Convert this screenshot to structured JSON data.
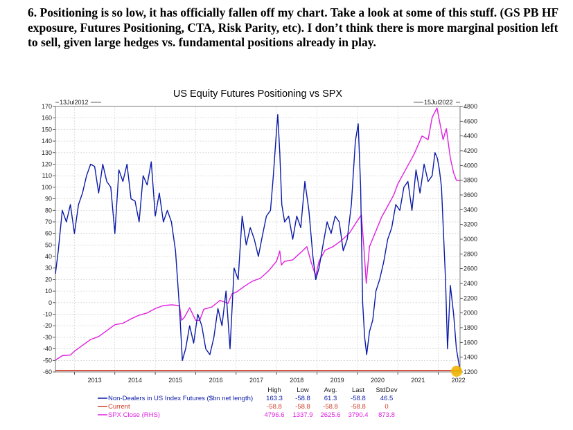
{
  "heading": "6. Positioning is so low, it has officially fallen off my chart. Take a look at some of this stuff. (GS PB HF exposure, Futures Positioning, CTA, Risk Parity, etc). I don’t think there is more marginal position left to sell, given large hedges vs. fundamental positions already in play.",
  "chart_data": {
    "type": "line",
    "title": "US Equity Futures Positioning vs SPX",
    "start_label": "13Jul2012",
    "end_label": "15Jul2022",
    "x_tick_labels": [
      "2013",
      "2014",
      "2015",
      "2016",
      "2017",
      "2018",
      "2019",
      "2020",
      "2021",
      "2022"
    ],
    "x_range": [
      2012.53,
      2022.54
    ],
    "y_left": {
      "ylim": [
        -60,
        170
      ],
      "ticks": [
        -60,
        -50,
        -40,
        -30,
        -20,
        -10,
        0,
        10,
        20,
        30,
        40,
        50,
        60,
        70,
        80,
        90,
        100,
        110,
        120,
        130,
        140,
        150,
        160,
        170
      ]
    },
    "y_right": {
      "ylim": [
        1200,
        4800
      ],
      "ticks": [
        1200,
        1400,
        1600,
        1800,
        2000,
        2200,
        2400,
        2600,
        2800,
        3000,
        3200,
        3400,
        3600,
        3800,
        4000,
        4200,
        4400,
        4600,
        4800
      ]
    },
    "series": [
      {
        "name": "Non-Dealers in US Index Futures ($bn net length)",
        "axis": "left",
        "color": "#0a1aa8",
        "x": [
          2012.53,
          2012.6,
          2012.7,
          2012.8,
          2012.9,
          2013.0,
          2013.1,
          2013.2,
          2013.3,
          2013.4,
          2013.5,
          2013.6,
          2013.7,
          2013.8,
          2013.9,
          2014.0,
          2014.1,
          2014.2,
          2014.3,
          2014.4,
          2014.5,
          2014.6,
          2014.7,
          2014.8,
          2014.9,
          2015.0,
          2015.1,
          2015.2,
          2015.3,
          2015.4,
          2015.5,
          2015.6,
          2015.67,
          2015.75,
          2015.85,
          2015.95,
          2016.05,
          2016.15,
          2016.25,
          2016.35,
          2016.45,
          2016.55,
          2016.65,
          2016.75,
          2016.85,
          2016.95,
          2017.05,
          2017.15,
          2017.25,
          2017.35,
          2017.45,
          2017.55,
          2017.65,
          2017.75,
          2017.85,
          2017.92,
          2017.98,
          2018.03,
          2018.08,
          2018.13,
          2018.2,
          2018.3,
          2018.4,
          2018.5,
          2018.6,
          2018.7,
          2018.8,
          2018.9,
          2018.97,
          2019.05,
          2019.15,
          2019.25,
          2019.35,
          2019.45,
          2019.55,
          2019.65,
          2019.75,
          2019.85,
          2019.95,
          2020.02,
          2020.08,
          2020.13,
          2020.18,
          2020.23,
          2020.3,
          2020.38,
          2020.46,
          2020.55,
          2020.65,
          2020.75,
          2020.85,
          2020.95,
          2021.05,
          2021.15,
          2021.25,
          2021.35,
          2021.45,
          2021.55,
          2021.65,
          2021.75,
          2021.85,
          2021.92,
          2021.98,
          2022.03,
          2022.08,
          2022.13,
          2022.18,
          2022.23,
          2022.3,
          2022.38,
          2022.45,
          2022.54
        ],
        "values": [
          25,
          45,
          80,
          70,
          85,
          60,
          85,
          95,
          110,
          120,
          118,
          95,
          120,
          105,
          100,
          60,
          115,
          105,
          120,
          90,
          88,
          70,
          110,
          102,
          122,
          75,
          95,
          70,
          80,
          70,
          45,
          -5,
          -50,
          -40,
          -20,
          -35,
          -10,
          -20,
          -40,
          -45,
          -30,
          -5,
          -20,
          10,
          -40,
          30,
          20,
          75,
          50,
          65,
          55,
          40,
          58,
          75,
          80,
          110,
          140,
          163,
          130,
          85,
          70,
          75,
          55,
          75,
          65,
          105,
          80,
          40,
          20,
          30,
          50,
          70,
          60,
          75,
          70,
          45,
          55,
          85,
          140,
          155,
          100,
          0,
          -30,
          -45,
          -25,
          -15,
          10,
          20,
          35,
          55,
          65,
          85,
          80,
          100,
          105,
          80,
          115,
          95,
          120,
          105,
          110,
          130,
          125,
          115,
          100,
          60,
          20,
          -40,
          15,
          -10,
          -40,
          -58.8
        ],
        "stats": {
          "high": "163.3",
          "low": "-58.8",
          "avg": "61.3",
          "last": "-58.8",
          "stddev": "46.5"
        }
      },
      {
        "name": "Current",
        "axis": "left",
        "color": "#d0402a",
        "x": [
          2012.53,
          2022.54
        ],
        "values": [
          -58.8,
          -58.8
        ],
        "stats": {
          "high": "-58.8",
          "low": "-58.8",
          "avg": "-58.8",
          "last": "-58.8",
          "stddev": "0"
        }
      },
      {
        "name": "SPX Close (RHS)",
        "axis": "right",
        "color": "#e020e0",
        "x": [
          2012.53,
          2012.7,
          2012.9,
          2013.0,
          2013.2,
          2013.4,
          2013.6,
          2013.8,
          2014.0,
          2014.2,
          2014.4,
          2014.6,
          2014.8,
          2015.0,
          2015.2,
          2015.4,
          2015.6,
          2015.65,
          2015.72,
          2015.85,
          2016.0,
          2016.1,
          2016.2,
          2016.4,
          2016.6,
          2016.8,
          2016.9,
          2017.0,
          2017.2,
          2017.4,
          2017.6,
          2017.8,
          2018.0,
          2018.08,
          2018.12,
          2018.2,
          2018.4,
          2018.6,
          2018.75,
          2018.85,
          2018.97,
          2019.05,
          2019.2,
          2019.4,
          2019.6,
          2019.8,
          2020.0,
          2020.1,
          2020.16,
          2020.22,
          2020.3,
          2020.45,
          2020.6,
          2020.75,
          2020.9,
          2021.0,
          2021.2,
          2021.4,
          2021.6,
          2021.75,
          2021.85,
          2021.97,
          2022.05,
          2022.12,
          2022.2,
          2022.3,
          2022.38,
          2022.45,
          2022.54
        ],
        "values": [
          1360,
          1420,
          1430,
          1480,
          1560,
          1640,
          1680,
          1760,
          1840,
          1860,
          1920,
          1970,
          2000,
          2060,
          2100,
          2110,
          2100,
          1900,
          1940,
          2070,
          1900,
          1900,
          2050,
          2080,
          2170,
          2130,
          2260,
          2280,
          2360,
          2430,
          2470,
          2570,
          2700,
          2840,
          2650,
          2700,
          2720,
          2820,
          2900,
          2700,
          2500,
          2700,
          2850,
          2900,
          2980,
          3080,
          3250,
          3330,
          2900,
          2400,
          2900,
          3100,
          3300,
          3450,
          3600,
          3750,
          3950,
          4150,
          4400,
          4350,
          4650,
          4780,
          4550,
          4350,
          4500,
          4100,
          3900,
          3800,
          3790.4
        ],
        "stats": {
          "high": "4796.6",
          "low": "1337.9",
          "avg": "2625.6",
          "last": "3790.4",
          "stddev": "873.8"
        }
      }
    ],
    "stat_headers": [
      "High",
      "Low",
      "Avg.",
      "Last",
      "StdDev"
    ]
  }
}
